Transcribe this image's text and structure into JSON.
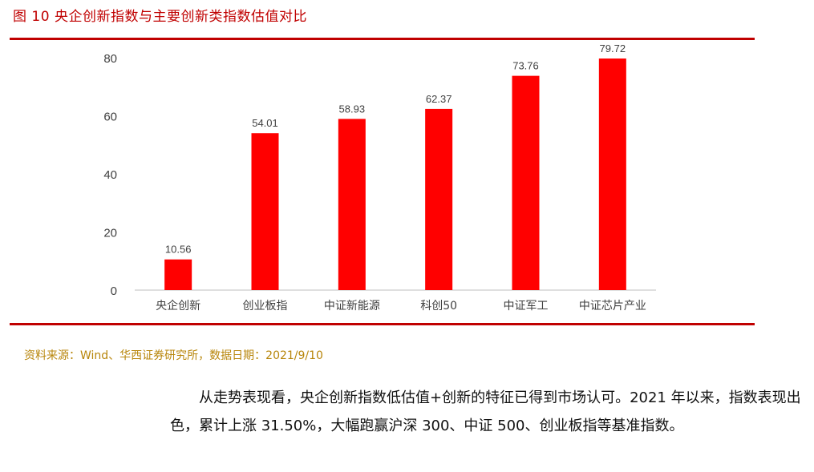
{
  "figure": {
    "title": "图 10  央企创新指数与主要创新类指数估值对比",
    "source": "资料来源：Wind、华西证券研究所，数据日期：2021/9/10"
  },
  "paragraph": "从走势表现看，央企创新指数低估值+创新的特征已得到市场认可。2021 年以来，指数表现出色，累计上涨 31.50%，大幅跑赢沪深 300、中证 500、创业板指等基准指数。",
  "colors": {
    "bar": "#ff0000",
    "rule": "#c00000",
    "source": "#b8860b"
  },
  "chart_data": {
    "type": "bar",
    "title": "",
    "xlabel": "",
    "ylabel": "",
    "categories": [
      "央企创新",
      "创业板指",
      "中证新能源",
      "科创50",
      "中证军工",
      "中证芯片产业"
    ],
    "values": [
      10.56,
      54.01,
      58.93,
      62.37,
      73.76,
      79.72
    ],
    "value_labels": [
      "10.56",
      "54.01",
      "58.93",
      "62.37",
      "73.76",
      "79.72"
    ],
    "ylim": [
      0,
      80
    ],
    "yticks": [
      0,
      20,
      40,
      60,
      80
    ],
    "grid": false,
    "legend": "none"
  }
}
